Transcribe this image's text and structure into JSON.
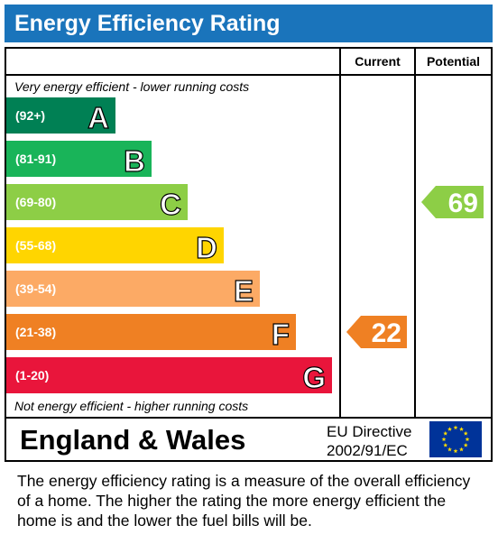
{
  "title": "Energy Efficiency Rating",
  "columns": {
    "current": "Current",
    "potential": "Potential"
  },
  "top_note": "Very energy efficient - lower running costs",
  "bottom_note": "Not energy efficient - higher running costs",
  "footer": {
    "region": "England & Wales",
    "directive_line1": "EU Directive",
    "directive_line2": "2002/91/EC"
  },
  "description": "The energy efficiency rating is a measure of the overall efficiency of a home.  The higher the rating the more energy efficient the home is and the lower the fuel bills will be.",
  "colors": {
    "title_bar": "#1a74bb",
    "eu_flag": "#003399",
    "eu_stars": "#ffdd00"
  },
  "chart_data": {
    "type": "bar",
    "bands": [
      {
        "letter": "A",
        "range": "(92+)",
        "color": "#008054"
      },
      {
        "letter": "B",
        "range": "(81-91)",
        "color": "#19b459"
      },
      {
        "letter": "C",
        "range": "(69-80)",
        "color": "#8dce46"
      },
      {
        "letter": "D",
        "range": "(55-68)",
        "color": "#ffd500"
      },
      {
        "letter": "E",
        "range": "(39-54)",
        "color": "#fcaa65"
      },
      {
        "letter": "F",
        "range": "(21-38)",
        "color": "#ef8023"
      },
      {
        "letter": "G",
        "range": "(1-20)",
        "color": "#e9153b"
      }
    ],
    "current": {
      "value": 22,
      "band": "F",
      "color": "#ef8023"
    },
    "potential": {
      "value": 69,
      "band": "C",
      "color": "#8dce46"
    }
  }
}
